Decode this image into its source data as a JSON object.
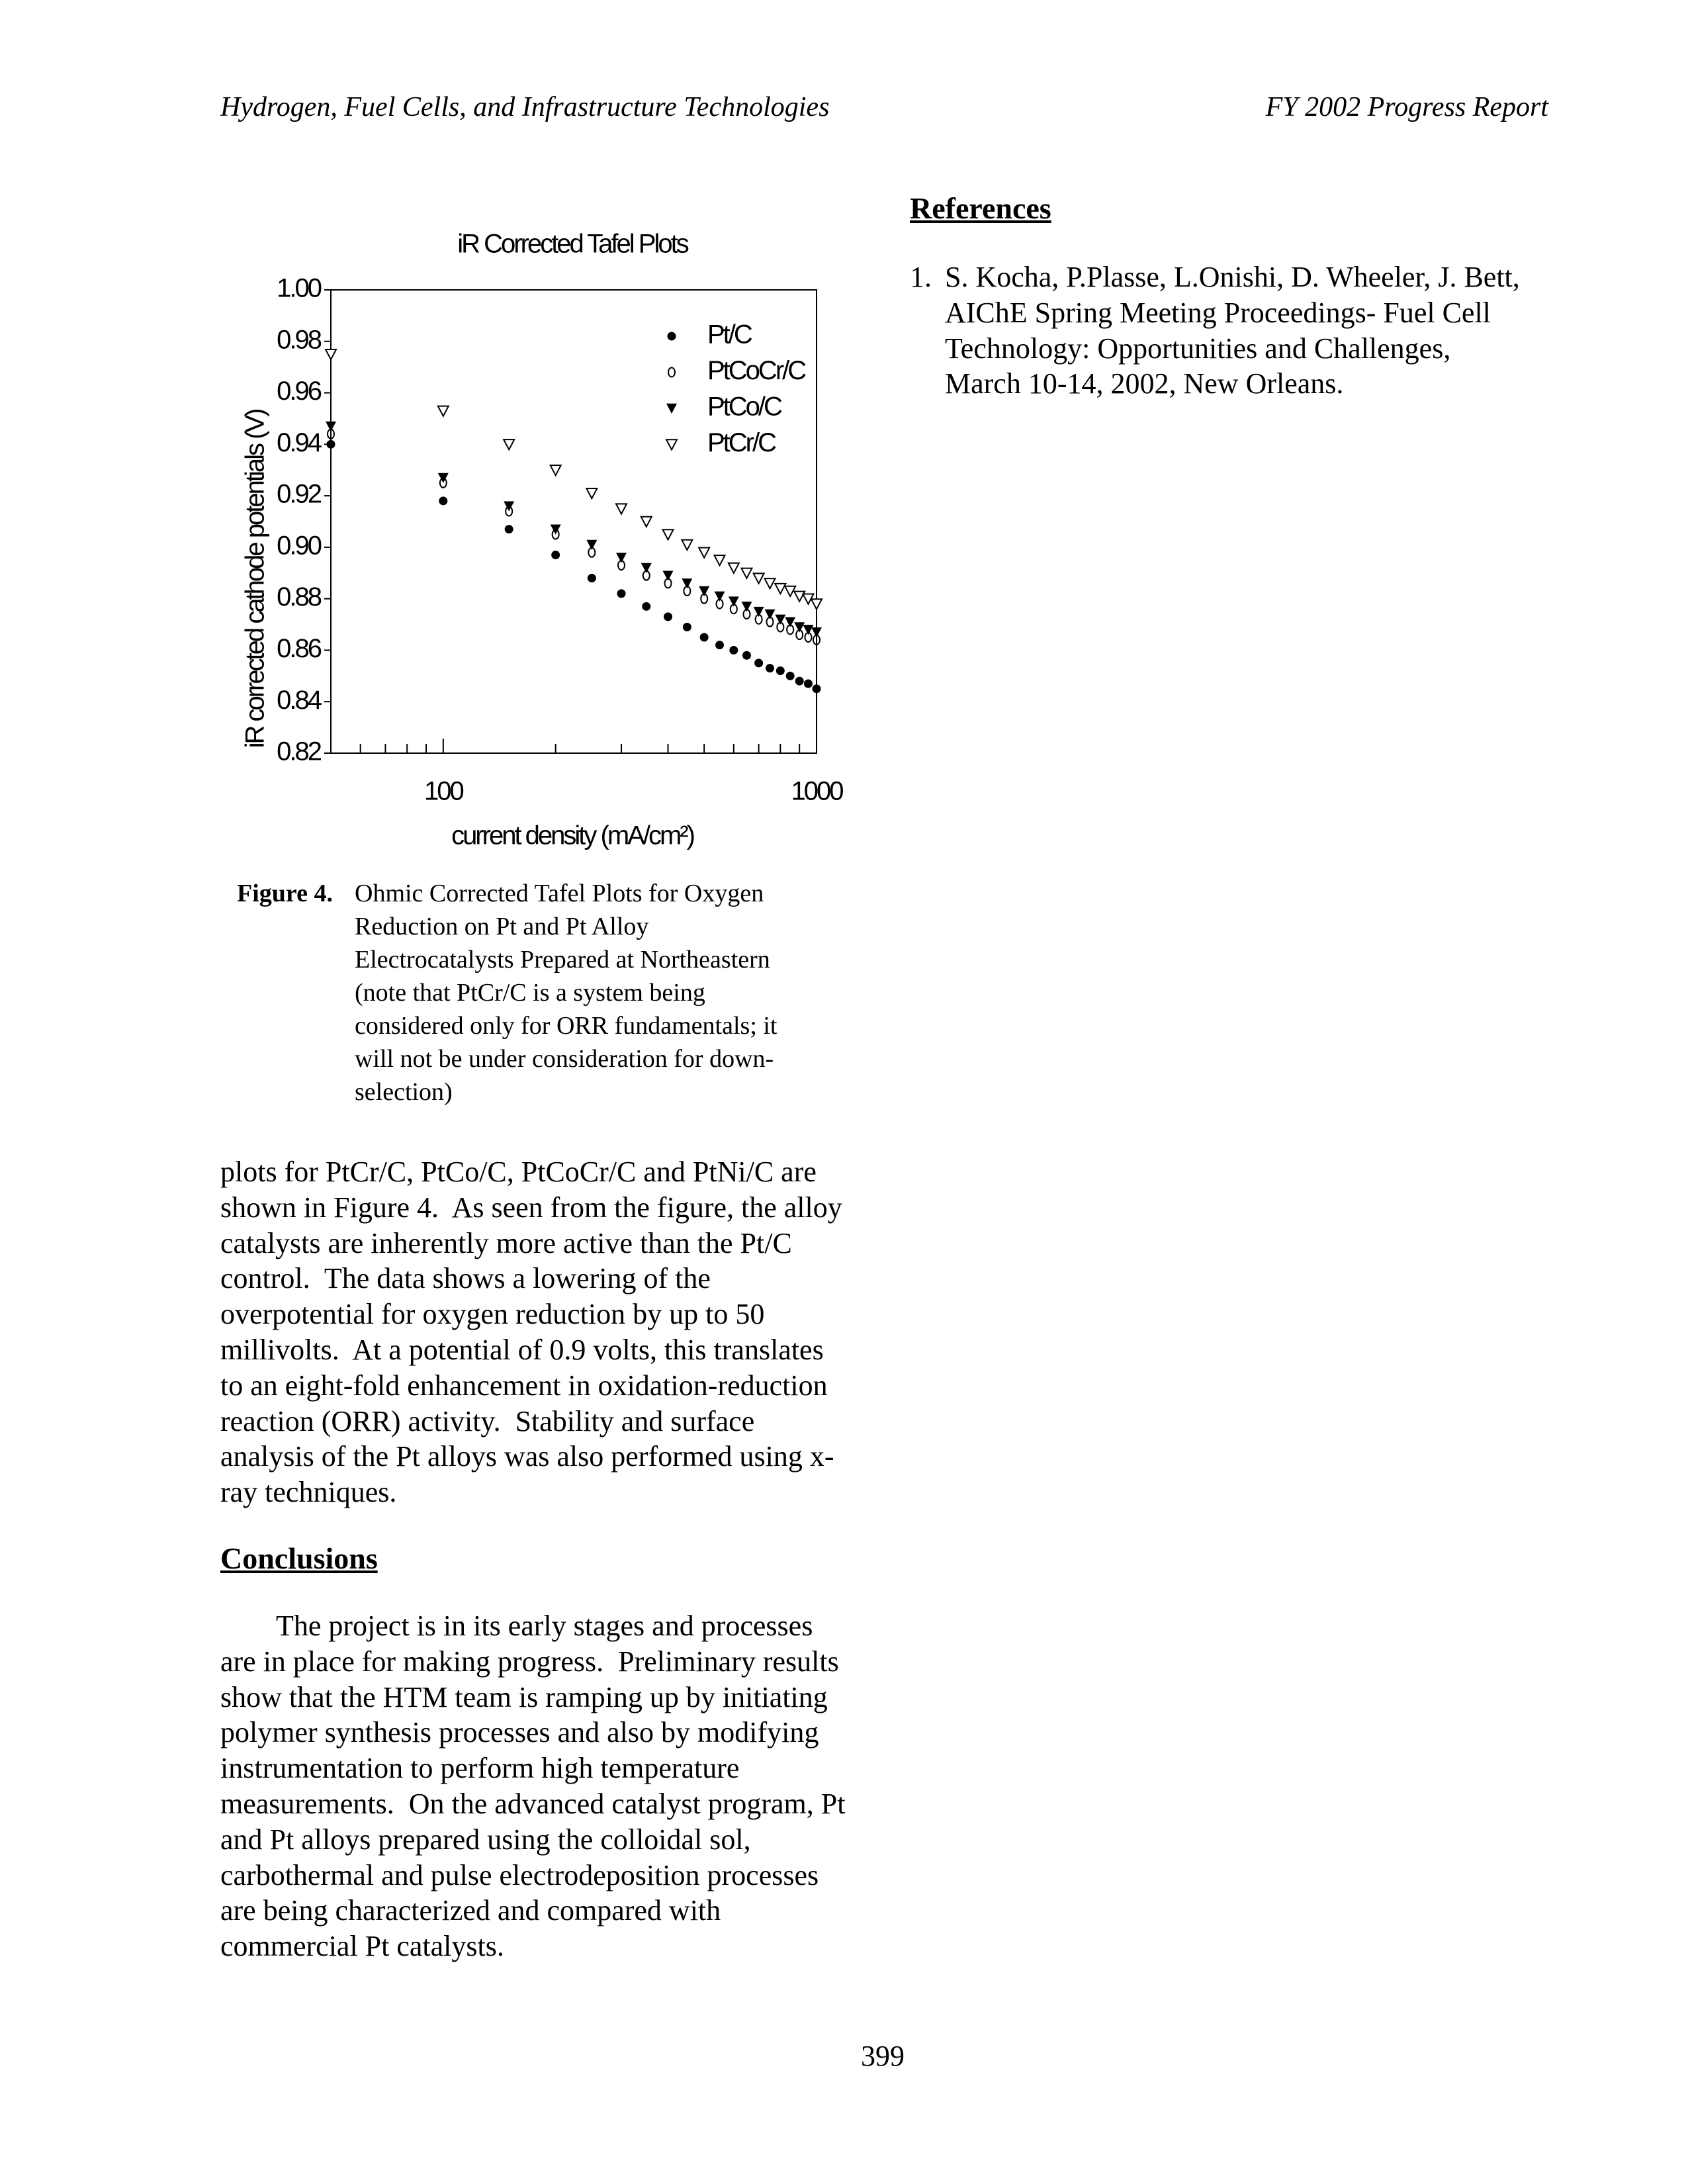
{
  "header": {
    "left": "Hydrogen, Fuel Cells, and Infrastructure Technologies",
    "right": "FY 2002 Progress Report"
  },
  "chart_data": {
    "type": "scatter",
    "title": "iR Corrected Tafel Plots",
    "x_label": "current density (mA/cm²)",
    "y_label": "iR corrected cathode potentials (V)",
    "x_scale": "log",
    "xlim": [
      50,
      1000
    ],
    "xticks": [
      100,
      1000
    ],
    "xminorticks": [
      60,
      70,
      80,
      90,
      200,
      300,
      400,
      500,
      600,
      700,
      800,
      900
    ],
    "ylim": [
      0.82,
      1.0
    ],
    "yticks": [
      0.82,
      0.84,
      0.86,
      0.88,
      {
        "value": 0.9,
        "label": "0.90"
      },
      0.92,
      0.94,
      0.96,
      0.98,
      {
        "value": 1,
        "label": "1.00"
      }
    ],
    "legend": "upper right",
    "x": [
      50,
      100,
      150,
      200,
      250,
      300,
      350,
      400,
      450,
      500,
      550,
      600,
      650,
      700,
      750,
      800,
      850,
      900,
      950,
      1000
    ],
    "series": [
      {
        "name": "Pt/C",
        "color": "#000000",
        "marker": "circle",
        "values": [
          0.94,
          0.918,
          0.907,
          0.897,
          0.888,
          0.882,
          0.877,
          0.873,
          0.869,
          0.865,
          0.862,
          0.86,
          0.858,
          0.855,
          0.853,
          0.852,
          0.85,
          0.848,
          0.847,
          0.845
        ]
      },
      {
        "name": "PtCoCr/C",
        "color": "#000000",
        "marker": "open-circle",
        "values": [
          0.944,
          0.925,
          0.914,
          0.905,
          0.898,
          0.893,
          0.889,
          0.886,
          0.883,
          0.88,
          0.878,
          0.876,
          0.874,
          0.872,
          0.871,
          0.869,
          0.868,
          0.866,
          0.865,
          0.864
        ]
      },
      {
        "name": "PtCo/C",
        "color": "#000000",
        "marker": "triangle-down",
        "values": [
          0.947,
          0.927,
          0.916,
          0.907,
          0.901,
          0.896,
          0.892,
          0.889,
          0.886,
          0.883,
          0.881,
          0.879,
          0.877,
          0.875,
          0.874,
          0.872,
          0.871,
          0.869,
          0.868,
          0.867
        ]
      },
      {
        "name": "PtCr/C",
        "color": "#000000",
        "marker": "open-triangle-down",
        "values": [
          0.975,
          0.953,
          0.94,
          0.93,
          0.921,
          0.915,
          0.91,
          0.905,
          0.901,
          0.898,
          0.895,
          0.892,
          0.89,
          0.888,
          0.886,
          0.884,
          0.883,
          0.881,
          0.88,
          0.878
        ]
      }
    ]
  },
  "caption": {
    "label": "Figure 4.",
    "lines": [
      "Ohmic Corrected Tafel Plots for Oxygen",
      "Reduction on Pt and Pt Alloy",
      "Electrocatalysts Prepared at Northeastern",
      "(note that PtCr/C is a system being",
      "considered only for ORR fundamentals; it",
      "will not be under consideration for down-",
      "selection)"
    ]
  },
  "body": {
    "lines": [
      "plots for PtCr/C, PtCo/C, PtCoCr/C and PtNi/C are",
      "shown in Figure 4.  As seen from the figure, the alloy",
      "catalysts are inherently more active than the Pt/C",
      "control.  The data shows a lowering of the",
      "overpotential for oxygen reduction by up to 50",
      "millivolts.  At a potential of 0.9 volts, this translates",
      "to an eight-fold enhancement in oxidation-reduction",
      "reaction (ORR) activity.  Stability and surface",
      "analysis of the Pt alloys was also performed using x-",
      "ray techniques."
    ]
  },
  "conclusions": {
    "heading": "Conclusions",
    "lines": [
      "The project is in its early stages and processes",
      "are in place for making progress.  Preliminary results",
      "show that the HTM team is ramping up by initiating",
      "polymer synthesis processes and also by modifying",
      "instrumentation to perform high temperature",
      "measurements.  On the advanced catalyst program, Pt",
      "and Pt alloys prepared using the colloidal sol,",
      "carbothermal and pulse electrodeposition processes",
      "are being characterized and compared with",
      "commercial Pt catalysts."
    ]
  },
  "references": {
    "heading": "References",
    "items": [
      {
        "number": "1.",
        "lines": [
          "S. Kocha, P.Plasse, L.Onishi, D. Wheeler, J. Bett,",
          "AIChE Spring Meeting Proceedings- Fuel Cell",
          "Technology: Opportunities and Challenges,",
          "March 10-14, 2002, New Orleans."
        ]
      }
    ]
  },
  "page_number": "399"
}
